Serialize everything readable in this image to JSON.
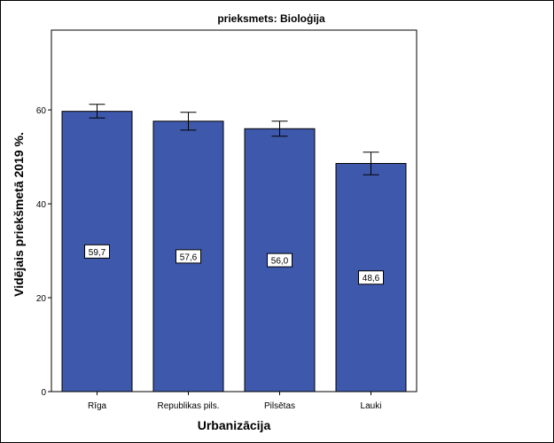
{
  "chart_data": {
    "type": "bar",
    "title": "prieksmets: Bioloģija",
    "xlabel": "Urbanizācija",
    "ylabel": "Vidējais priekšmetā 2019 %.",
    "categories": [
      "Rīga",
      "Republikas pils.",
      "Pilsētas",
      "Lauki"
    ],
    "values": [
      59.7,
      57.6,
      56.0,
      48.6
    ],
    "value_labels": [
      "59,7",
      "57,6",
      "56,0",
      "48,6"
    ],
    "error_low": [
      58.3,
      55.7,
      54.4,
      46.2
    ],
    "error_high": [
      61.2,
      59.5,
      57.6,
      51.0
    ],
    "ylim": [
      0,
      77
    ],
    "yticks": [
      0,
      20,
      40,
      60
    ],
    "ytick_labels": [
      "0",
      "20",
      "40",
      "60"
    ],
    "grid": false,
    "legend": "none",
    "colors": {
      "bar_fill": "#3e58ac",
      "bar_stroke": "#000000",
      "plot_background": "#ffffff"
    }
  }
}
